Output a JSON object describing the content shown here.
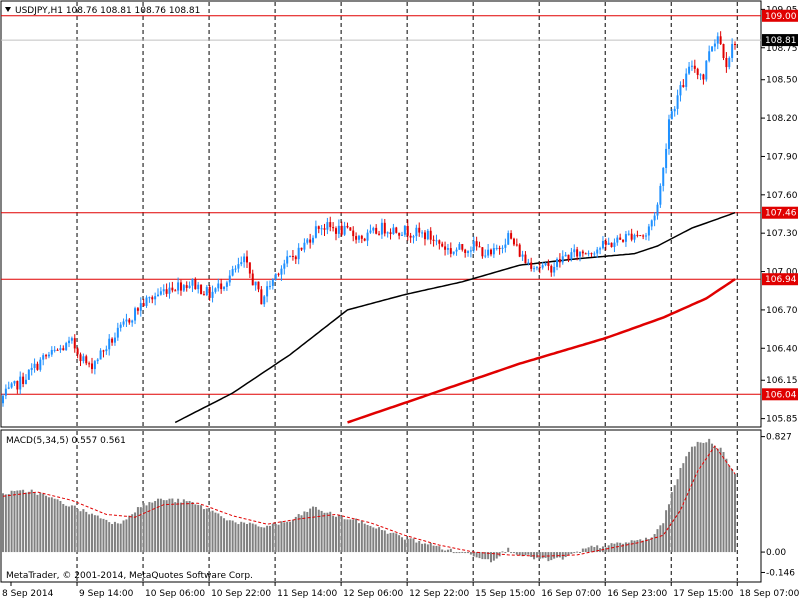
{
  "header": {
    "symbol_info": "USDJPY,H1  108.76 108.81 108.76 108.81",
    "dropdown_icon": "triangle-down-icon"
  },
  "watermark": "MetaTrader, © 2001-2014, MetaQuotes Software Corp.",
  "colors": {
    "background": "#ffffff",
    "bull": "#1e90ff",
    "bear": "#e00000",
    "ma_fast": "#000000",
    "ma_slow": "#e00000",
    "hline": "#e00000",
    "grid": "#000000",
    "macd_bar": "#808080",
    "macd_signal": "#e00000"
  },
  "chart_data": [
    {
      "type": "candlestick",
      "symbol": "USDJPY",
      "timeframe": "H1",
      "ylim": [
        105.8,
        109.1
      ],
      "y_ticks": [
        "109.05",
        "108.75",
        "108.50",
        "108.20",
        "107.90",
        "107.60",
        "107.30",
        "107.00",
        "106.70",
        "106.40",
        "106.15",
        "105.85"
      ],
      "x_ticks": [
        "8 Sep 2014",
        "9 Sep 14:00",
        "10 Sep 06:00",
        "10 Sep 22:00",
        "11 Sep 14:00",
        "12 Sep 06:00",
        "12 Sep 22:00",
        "15 Sep 15:00",
        "16 Sep 07:00",
        "16 Sep 23:00",
        "17 Sep 15:00",
        "18 Sep 07:00"
      ],
      "horizontal_levels": [
        "109.00",
        "107.46",
        "106.94",
        "106.04"
      ],
      "current_price": "108.81",
      "series": [
        {
          "name": "Close",
          "anchors": [
            [
              0,
              106.02
            ],
            [
              8,
              106.18
            ],
            [
              14,
              106.32
            ],
            [
              24,
              106.44
            ],
            [
              30,
              106.25
            ],
            [
              40,
              106.52
            ],
            [
              48,
              106.74
            ],
            [
              58,
              106.88
            ],
            [
              66,
              106.91
            ],
            [
              72,
              106.82
            ],
            [
              78,
              106.94
            ],
            [
              84,
              107.08
            ],
            [
              90,
              106.78
            ],
            [
              96,
              107.02
            ],
            [
              104,
              107.18
            ],
            [
              110,
              107.36
            ],
            [
              118,
              107.32
            ],
            [
              126,
              107.26
            ],
            [
              132,
              107.34
            ],
            [
              140,
              107.32
            ],
            [
              148,
              107.28
            ],
            [
              156,
              107.16
            ],
            [
              164,
              107.2
            ],
            [
              170,
              107.12
            ],
            [
              176,
              107.28
            ],
            [
              182,
              107.08
            ],
            [
              190,
              107.02
            ],
            [
              196,
              107.12
            ],
            [
              204,
              107.16
            ],
            [
              212,
              107.22
            ],
            [
              220,
              107.3
            ],
            [
              224,
              107.28
            ],
            [
              228,
              107.52
            ],
            [
              230,
              107.8
            ],
            [
              232,
              108.2
            ],
            [
              236,
              108.42
            ],
            [
              240,
              108.62
            ],
            [
              244,
              108.52
            ],
            [
              246,
              108.74
            ],
            [
              249,
              108.85
            ],
            [
              252,
              108.64
            ],
            [
              255,
              108.81
            ]
          ]
        },
        {
          "name": "MA fast",
          "anchors": [
            [
              60,
              105.82
            ],
            [
              80,
              106.05
            ],
            [
              100,
              106.35
            ],
            [
              120,
              106.7
            ],
            [
              140,
              106.82
            ],
            [
              160,
              106.92
            ],
            [
              180,
              107.05
            ],
            [
              200,
              107.1
            ],
            [
              220,
              107.14
            ],
            [
              228,
              107.2
            ],
            [
              240,
              107.34
            ],
            [
              255,
              107.46
            ]
          ]
        },
        {
          "name": "MA slow",
          "anchors": [
            [
              120,
              105.82
            ],
            [
              150,
              106.05
            ],
            [
              180,
              106.28
            ],
            [
              210,
              106.48
            ],
            [
              230,
              106.64
            ],
            [
              245,
              106.79
            ],
            [
              255,
              106.94
            ]
          ]
        }
      ]
    },
    {
      "type": "bar",
      "indicator": "MACD(5,34,5) 0.557 0.561",
      "ylim": [
        -0.2,
        0.86
      ],
      "y_ticks": [
        "0.827",
        "0.00",
        "-0.146"
      ],
      "series": [
        {
          "name": "MACD",
          "anchors": [
            [
              0,
              0.42
            ],
            [
              10,
              0.44
            ],
            [
              20,
              0.36
            ],
            [
              30,
              0.28
            ],
            [
              40,
              0.2
            ],
            [
              48,
              0.33
            ],
            [
              55,
              0.38
            ],
            [
              65,
              0.36
            ],
            [
              72,
              0.3
            ],
            [
              80,
              0.22
            ],
            [
              90,
              0.18
            ],
            [
              100,
              0.22
            ],
            [
              108,
              0.32
            ],
            [
              116,
              0.26
            ],
            [
              124,
              0.22
            ],
            [
              132,
              0.16
            ],
            [
              140,
              0.1
            ],
            [
              148,
              0.06
            ],
            [
              156,
              0.01
            ],
            [
              164,
              -0.02
            ],
            [
              170,
              -0.06
            ],
            [
              176,
              0.02
            ],
            [
              182,
              -0.03
            ],
            [
              190,
              -0.06
            ],
            [
              196,
              -0.04
            ],
            [
              204,
              0.03
            ],
            [
              212,
              0.05
            ],
            [
              220,
              0.08
            ],
            [
              226,
              0.1
            ],
            [
              230,
              0.22
            ],
            [
              234,
              0.48
            ],
            [
              238,
              0.7
            ],
            [
              242,
              0.78
            ],
            [
              246,
              0.8
            ],
            [
              250,
              0.74
            ],
            [
              255,
              0.56
            ]
          ]
        },
        {
          "name": "Signal",
          "anchors": [
            [
              0,
              0.4
            ],
            [
              12,
              0.43
            ],
            [
              24,
              0.37
            ],
            [
              36,
              0.27
            ],
            [
              46,
              0.25
            ],
            [
              56,
              0.34
            ],
            [
              68,
              0.35
            ],
            [
              80,
              0.26
            ],
            [
              92,
              0.2
            ],
            [
              104,
              0.24
            ],
            [
              116,
              0.27
            ],
            [
              128,
              0.21
            ],
            [
              140,
              0.12
            ],
            [
              152,
              0.05
            ],
            [
              164,
              0.0
            ],
            [
              176,
              -0.02
            ],
            [
              188,
              -0.03
            ],
            [
              200,
              -0.02
            ],
            [
              212,
              0.03
            ],
            [
              222,
              0.07
            ],
            [
              230,
              0.12
            ],
            [
              236,
              0.3
            ],
            [
              242,
              0.58
            ],
            [
              248,
              0.76
            ],
            [
              255,
              0.56
            ]
          ]
        }
      ]
    }
  ]
}
